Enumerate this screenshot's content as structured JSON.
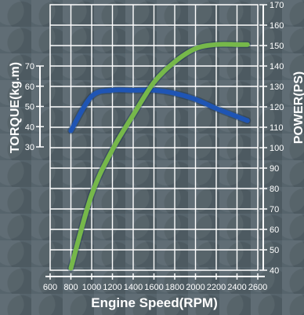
{
  "chart_data": {
    "type": "line",
    "xlabel": "Engine Speed(RPM)",
    "ylabel_left": "TORQUE(kg.m)",
    "ylabel_right": "POWER(PS)",
    "xlim": [
      600,
      2600
    ],
    "x_ticks": [
      600,
      800,
      1000,
      1200,
      1400,
      1600,
      1800,
      2000,
      2200,
      2400,
      2600
    ],
    "ylim_left": [
      30,
      70
    ],
    "y_ticks_left": [
      30,
      40,
      50,
      60,
      70
    ],
    "ylim_right": [
      40,
      170
    ],
    "y_ticks_right": [
      40,
      50,
      60,
      70,
      80,
      90,
      100,
      110,
      120,
      130,
      140,
      150,
      160,
      170
    ],
    "grid": true,
    "series": [
      {
        "color": "#1f55b4",
        "axis": "left",
        "x": [
          800,
          1000,
          1200,
          1400,
          1600,
          1800,
          2000,
          2200,
          2400,
          2500
        ],
        "values": [
          38,
          55,
          58,
          58,
          58,
          56.5,
          53.5,
          49,
          45,
          43
        ]
      },
      {
        "color": "#76b84a",
        "axis": "right",
        "x": [
          800,
          1000,
          1200,
          1400,
          1600,
          1800,
          2000,
          2200,
          2400,
          2500
        ],
        "values": [
          41,
          77,
          99,
          116,
          132,
          142,
          148.5,
          150.5,
          150.5,
          150.5
        ]
      }
    ]
  }
}
